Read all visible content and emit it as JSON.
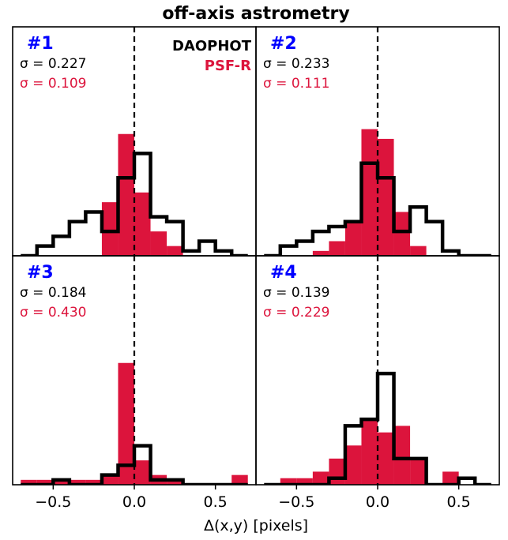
{
  "colors": {
    "daophot": "#000000",
    "psfr": "#dc143c",
    "panel_id": "#0000ff"
  },
  "chart_data": {
    "type": "histogram",
    "title": "off-axis astrometry",
    "xlabel": "Δ(x,y) [pixels]",
    "xlim": [
      -0.75,
      0.75
    ],
    "xticks": [
      -0.5,
      0.0,
      0.5
    ],
    "xtick_labels": [
      "−0.5",
      "0.0",
      "0.5"
    ],
    "grid": false,
    "reference_line_x": 0.0,
    "legend": [
      {
        "name": "DAOPHOT",
        "style": "step",
        "color": "#000000"
      },
      {
        "name": "PSF-R",
        "style": "filled",
        "color": "#dc143c"
      }
    ],
    "panels": [
      {
        "id": "#1",
        "ylim": [
          0,
          47
        ],
        "sigma_daophot": "σ = 0.227",
        "sigma_psfr": "σ = 0.109",
        "daophot": {
          "edges": [
            -0.7,
            -0.6,
            -0.5,
            -0.4,
            -0.3,
            -0.2,
            -0.1,
            0.0,
            0.1,
            0.2,
            0.3,
            0.4,
            0.5,
            0.6,
            0.7
          ],
          "counts": [
            0,
            2,
            4,
            7,
            9,
            5,
            16,
            21,
            8,
            7,
            1,
            3,
            1,
            0
          ]
        },
        "psfr": {
          "edges": [
            -0.2,
            -0.1,
            0.0,
            0.1,
            0.2,
            0.3
          ],
          "counts": [
            11,
            25,
            13,
            5,
            2
          ]
        }
      },
      {
        "id": "#2",
        "ylim": [
          0,
          47
        ],
        "sigma_daophot": "σ = 0.233",
        "sigma_psfr": "σ = 0.111",
        "daophot": {
          "edges": [
            -0.7,
            -0.6,
            -0.5,
            -0.4,
            -0.3,
            -0.2,
            -0.1,
            0.0,
            0.1,
            0.2,
            0.3,
            0.4,
            0.5,
            0.6,
            0.7
          ],
          "counts": [
            0,
            2,
            3,
            5,
            6,
            7,
            19,
            16,
            5,
            10,
            7,
            1,
            0,
            0
          ]
        },
        "psfr": {
          "edges": [
            -0.4,
            -0.3,
            -0.2,
            -0.1,
            0.0,
            0.1,
            0.2,
            0.3
          ],
          "counts": [
            1,
            3,
            7,
            26,
            24,
            9,
            2
          ]
        }
      },
      {
        "id": "#3",
        "ylim": [
          0,
          47
        ],
        "sigma_daophot": "σ = 0.184",
        "sigma_psfr": "σ = 0.430",
        "daophot": {
          "edges": [
            -0.7,
            -0.6,
            -0.5,
            -0.4,
            -0.3,
            -0.2,
            -0.1,
            0.0,
            0.1,
            0.2,
            0.3,
            0.4,
            0.5,
            0.6,
            0.7
          ],
          "counts": [
            0,
            0,
            1,
            0,
            0,
            2,
            4,
            8,
            1,
            1,
            0,
            0,
            0,
            0
          ]
        },
        "psfr": {
          "edges": [
            -0.7,
            -0.6,
            -0.5,
            -0.4,
            -0.3,
            -0.2,
            -0.1,
            0.0,
            0.1,
            0.2,
            0.3,
            0.4,
            0.5,
            0.6,
            0.7
          ],
          "counts": [
            1,
            1,
            1,
            1,
            1,
            2,
            25,
            5,
            2,
            1,
            0,
            0,
            0,
            2
          ]
        }
      },
      {
        "id": "#4",
        "ylim": [
          0,
          35
        ],
        "sigma_daophot": "σ = 0.139",
        "sigma_psfr": "σ = 0.229",
        "daophot": {
          "edges": [
            -0.7,
            -0.6,
            -0.5,
            -0.4,
            -0.3,
            -0.2,
            -0.1,
            0.0,
            0.1,
            0.2,
            0.3,
            0.4,
            0.5,
            0.6,
            0.7
          ],
          "counts": [
            0,
            0,
            0,
            0,
            1,
            9,
            10,
            17,
            4,
            4,
            0,
            0,
            1,
            0
          ]
        },
        "psfr": {
          "edges": [
            -0.6,
            -0.5,
            -0.4,
            -0.3,
            -0.2,
            -0.1,
            0.0,
            0.1,
            0.2,
            0.3,
            0.4,
            0.5
          ],
          "counts": [
            1,
            1,
            2,
            4,
            6,
            10,
            8,
            9,
            4,
            0,
            2
          ]
        }
      }
    ]
  }
}
